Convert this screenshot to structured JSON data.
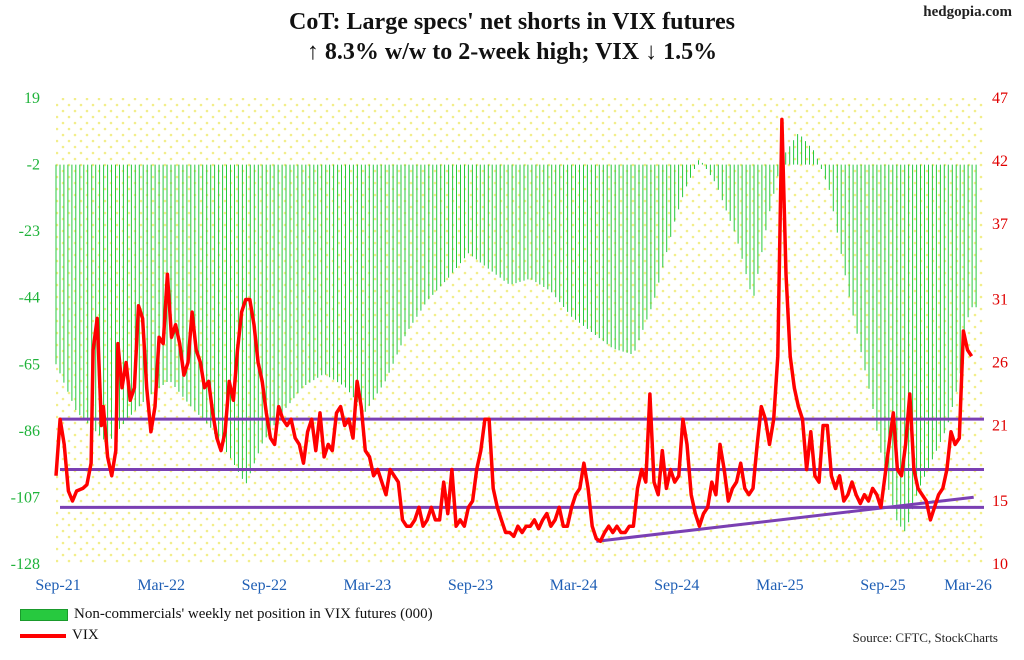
{
  "header": {
    "title_line1": "CoT: Large specs' net shorts in VIX futures",
    "title_line2": "↑ 8.3% w/w to 2-week high; VIX ↓ 1.5%",
    "brand": "hedgopia.com"
  },
  "legend": {
    "bars_label": "Non-commercials' weekly net position in VIX futures (000)",
    "line_label": "VIX"
  },
  "source": "Source: CFTC, StockCharts",
  "colors": {
    "bars": "#27c93f",
    "line": "#ff0000",
    "ref_lines": "#7a3fb3",
    "left_axis": "#1fb33a",
    "right_axis": "#e00000",
    "x_axis": "#1f5fb5",
    "background_dots": "#f2ee8a"
  },
  "chart_data": {
    "type": "bar",
    "x_range": [
      2021.7,
      2026.2
    ],
    "x_ticks": [
      {
        "x": 2021.71,
        "label": "Sep-21"
      },
      {
        "x": 2022.21,
        "label": "Mar-22"
      },
      {
        "x": 2022.71,
        "label": "Sep-22"
      },
      {
        "x": 2023.21,
        "label": "Mar-23"
      },
      {
        "x": 2023.71,
        "label": "Sep-23"
      },
      {
        "x": 2024.21,
        "label": "Mar-24"
      },
      {
        "x": 2024.71,
        "label": "Sep-24"
      },
      {
        "x": 2025.21,
        "label": "Mar-25"
      },
      {
        "x": 2025.71,
        "label": "Sep-25"
      },
      {
        "x": 2026.21,
        "label": "Mar-26"
      }
    ],
    "left_axis": {
      "ticks": [
        19,
        -2,
        -23,
        -44,
        -65,
        -86,
        -107,
        -128
      ],
      "ylim": [
        -128,
        19
      ]
    },
    "right_axis": {
      "ticks": [
        47,
        42,
        37,
        31,
        26,
        21,
        15,
        10
      ],
      "ylim": [
        10,
        47
      ]
    },
    "bars_series": {
      "name": "Non-commercials' weekly net position in VIX futures (000)",
      "anchors": [
        [
          2021.7,
          -65
        ],
        [
          2021.8,
          -80
        ],
        [
          2021.95,
          -90
        ],
        [
          2022.05,
          -82
        ],
        [
          2022.15,
          -75
        ],
        [
          2022.25,
          -70
        ],
        [
          2022.35,
          -78
        ],
        [
          2022.45,
          -85
        ],
        [
          2022.55,
          -95
        ],
        [
          2022.62,
          -103
        ],
        [
          2022.7,
          -90
        ],
        [
          2022.8,
          -80
        ],
        [
          2022.9,
          -72
        ],
        [
          2023.0,
          -68
        ],
        [
          2023.1,
          -72
        ],
        [
          2023.2,
          -80
        ],
        [
          2023.3,
          -70
        ],
        [
          2023.4,
          -55
        ],
        [
          2023.5,
          -45
        ],
        [
          2023.6,
          -38
        ],
        [
          2023.7,
          -30
        ],
        [
          2023.8,
          -35
        ],
        [
          2023.9,
          -40
        ],
        [
          2024.0,
          -38
        ],
        [
          2024.1,
          -42
        ],
        [
          2024.2,
          -50
        ],
        [
          2024.3,
          -55
        ],
        [
          2024.4,
          -60
        ],
        [
          2024.5,
          -62
        ],
        [
          2024.6,
          -45
        ],
        [
          2024.7,
          -20
        ],
        [
          2024.75,
          -10
        ],
        [
          2024.82,
          0
        ],
        [
          2024.9,
          -8
        ],
        [
          2025.0,
          -25
        ],
        [
          2025.08,
          -45
        ],
        [
          2025.15,
          -20
        ],
        [
          2025.22,
          0
        ],
        [
          2025.3,
          8
        ],
        [
          2025.38,
          2
        ],
        [
          2025.45,
          -10
        ],
        [
          2025.55,
          -45
        ],
        [
          2025.65,
          -75
        ],
        [
          2025.72,
          -100
        ],
        [
          2025.78,
          -115
        ],
        [
          2025.82,
          -118
        ],
        [
          2025.88,
          -105
        ],
        [
          2025.95,
          -95
        ],
        [
          2026.02,
          -85
        ],
        [
          2026.08,
          -70
        ],
        [
          2026.13,
          -47
        ],
        [
          2026.17,
          -47
        ]
      ]
    },
    "line_series": {
      "name": "VIX",
      "points": [
        [
          2021.7,
          17.0
        ],
        [
          2021.72,
          21.5
        ],
        [
          2021.74,
          19.5
        ],
        [
          2021.76,
          15.8
        ],
        [
          2021.78,
          15.0
        ],
        [
          2021.8,
          15.8
        ],
        [
          2021.83,
          16.0
        ],
        [
          2021.85,
          16.3
        ],
        [
          2021.87,
          18.0
        ],
        [
          2021.88,
          27.0
        ],
        [
          2021.9,
          29.5
        ],
        [
          2021.92,
          21.0
        ],
        [
          2021.93,
          22.5
        ],
        [
          2021.95,
          18.5
        ],
        [
          2021.97,
          17.0
        ],
        [
          2021.99,
          19.0
        ],
        [
          2022.0,
          27.5
        ],
        [
          2022.02,
          24.0
        ],
        [
          2022.04,
          26.0
        ],
        [
          2022.06,
          23.0
        ],
        [
          2022.08,
          24.0
        ],
        [
          2022.1,
          30.5
        ],
        [
          2022.12,
          29.5
        ],
        [
          2022.14,
          24.0
        ],
        [
          2022.16,
          20.5
        ],
        [
          2022.18,
          22.5
        ],
        [
          2022.2,
          28.0
        ],
        [
          2022.22,
          27.5
        ],
        [
          2022.24,
          33.0
        ],
        [
          2022.26,
          28.0
        ],
        [
          2022.28,
          29.0
        ],
        [
          2022.3,
          27.5
        ],
        [
          2022.32,
          25.0
        ],
        [
          2022.34,
          26.0
        ],
        [
          2022.36,
          30.0
        ],
        [
          2022.38,
          27.0
        ],
        [
          2022.4,
          26.0
        ],
        [
          2022.42,
          24.0
        ],
        [
          2022.44,
          24.5
        ],
        [
          2022.46,
          22.0
        ],
        [
          2022.48,
          20.0
        ],
        [
          2022.5,
          19.0
        ],
        [
          2022.52,
          20.5
        ],
        [
          2022.54,
          24.5
        ],
        [
          2022.56,
          23.0
        ],
        [
          2022.58,
          27.0
        ],
        [
          2022.6,
          30.0
        ],
        [
          2022.62,
          31.0
        ],
        [
          2022.64,
          31.0
        ],
        [
          2022.66,
          29.0
        ],
        [
          2022.68,
          26.0
        ],
        [
          2022.7,
          24.5
        ],
        [
          2022.72,
          22.0
        ],
        [
          2022.74,
          20.0
        ],
        [
          2022.76,
          19.5
        ],
        [
          2022.78,
          22.5
        ],
        [
          2022.8,
          21.5
        ],
        [
          2022.82,
          21.0
        ],
        [
          2022.84,
          21.5
        ],
        [
          2022.86,
          20.0
        ],
        [
          2022.88,
          19.5
        ],
        [
          2022.9,
          18.0
        ],
        [
          2022.92,
          20.5
        ],
        [
          2022.94,
          21.5
        ],
        [
          2022.96,
          19.0
        ],
        [
          2022.98,
          22.0
        ],
        [
          2023.0,
          18.5
        ],
        [
          2023.02,
          19.5
        ],
        [
          2023.04,
          19.0
        ],
        [
          2023.06,
          22.0
        ],
        [
          2023.08,
          22.5
        ],
        [
          2023.1,
          21.0
        ],
        [
          2023.12,
          21.5
        ],
        [
          2023.14,
          20.0
        ],
        [
          2023.16,
          24.5
        ],
        [
          2023.18,
          22.5
        ],
        [
          2023.2,
          19.0
        ],
        [
          2023.22,
          18.5
        ],
        [
          2023.24,
          17.0
        ],
        [
          2023.26,
          17.5
        ],
        [
          2023.28,
          16.5
        ],
        [
          2023.3,
          15.5
        ],
        [
          2023.32,
          17.5
        ],
        [
          2023.34,
          17.0
        ],
        [
          2023.36,
          16.5
        ],
        [
          2023.38,
          13.5
        ],
        [
          2023.4,
          13.0
        ],
        [
          2023.42,
          13.0
        ],
        [
          2023.44,
          13.5
        ],
        [
          2023.46,
          14.5
        ],
        [
          2023.48,
          13.0
        ],
        [
          2023.5,
          13.5
        ],
        [
          2023.52,
          14.5
        ],
        [
          2023.54,
          13.5
        ],
        [
          2023.56,
          13.5
        ],
        [
          2023.58,
          16.5
        ],
        [
          2023.6,
          14.0
        ],
        [
          2023.62,
          17.5
        ],
        [
          2023.64,
          13.0
        ],
        [
          2023.66,
          13.5
        ],
        [
          2023.68,
          13.0
        ],
        [
          2023.7,
          14.5
        ],
        [
          2023.72,
          15.0
        ],
        [
          2023.74,
          17.5
        ],
        [
          2023.76,
          19.0
        ],
        [
          2023.78,
          21.5
        ],
        [
          2023.8,
          21.5
        ],
        [
          2023.82,
          16.0
        ],
        [
          2023.84,
          14.5
        ],
        [
          2023.86,
          13.5
        ],
        [
          2023.88,
          12.5
        ],
        [
          2023.9,
          12.5
        ],
        [
          2023.92,
          12.2
        ],
        [
          2023.94,
          13.0
        ],
        [
          2023.96,
          12.5
        ],
        [
          2023.98,
          13.0
        ],
        [
          2024.0,
          13.0
        ],
        [
          2024.02,
          13.5
        ],
        [
          2024.04,
          12.8
        ],
        [
          2024.06,
          13.5
        ],
        [
          2024.08,
          14.0
        ],
        [
          2024.1,
          13.0
        ],
        [
          2024.12,
          13.5
        ],
        [
          2024.14,
          14.5
        ],
        [
          2024.16,
          13.0
        ],
        [
          2024.18,
          13.0
        ],
        [
          2024.2,
          14.5
        ],
        [
          2024.22,
          15.5
        ],
        [
          2024.24,
          16.0
        ],
        [
          2024.26,
          18.0
        ],
        [
          2024.28,
          16.0
        ],
        [
          2024.3,
          13.0
        ],
        [
          2024.32,
          12.0
        ],
        [
          2024.34,
          11.8
        ],
        [
          2024.36,
          12.5
        ],
        [
          2024.38,
          13.0
        ],
        [
          2024.4,
          12.5
        ],
        [
          2024.42,
          13.0
        ],
        [
          2024.44,
          12.5
        ],
        [
          2024.46,
          12.5
        ],
        [
          2024.48,
          13.0
        ],
        [
          2024.5,
          13.0
        ],
        [
          2024.52,
          16.0
        ],
        [
          2024.54,
          17.5
        ],
        [
          2024.56,
          16.5
        ],
        [
          2024.58,
          23.5
        ],
        [
          2024.6,
          16.5
        ],
        [
          2024.62,
          15.5
        ],
        [
          2024.64,
          19.0
        ],
        [
          2024.66,
          16.0
        ],
        [
          2024.68,
          17.5
        ],
        [
          2024.7,
          16.5
        ],
        [
          2024.72,
          17.0
        ],
        [
          2024.74,
          21.5
        ],
        [
          2024.76,
          19.5
        ],
        [
          2024.78,
          15.5
        ],
        [
          2024.8,
          14.0
        ],
        [
          2024.82,
          13.0
        ],
        [
          2024.84,
          14.0
        ],
        [
          2024.86,
          14.5
        ],
        [
          2024.88,
          16.5
        ],
        [
          2024.9,
          15.5
        ],
        [
          2024.92,
          19.5
        ],
        [
          2024.94,
          17.5
        ],
        [
          2024.96,
          15.0
        ],
        [
          2024.98,
          16.0
        ],
        [
          2025.0,
          16.5
        ],
        [
          2025.02,
          18.0
        ],
        [
          2025.04,
          16.0
        ],
        [
          2025.06,
          15.5
        ],
        [
          2025.08,
          16.0
        ],
        [
          2025.1,
          19.5
        ],
        [
          2025.12,
          22.5
        ],
        [
          2025.14,
          21.5
        ],
        [
          2025.16,
          19.5
        ],
        [
          2025.18,
          21.5
        ],
        [
          2025.2,
          26.5
        ],
        [
          2025.22,
          45.3
        ],
        [
          2025.24,
          33.0
        ],
        [
          2025.26,
          26.5
        ],
        [
          2025.28,
          24.0
        ],
        [
          2025.3,
          22.5
        ],
        [
          2025.32,
          21.5
        ],
        [
          2025.34,
          17.5
        ],
        [
          2025.36,
          20.5
        ],
        [
          2025.38,
          17.0
        ],
        [
          2025.4,
          16.5
        ],
        [
          2025.42,
          21.0
        ],
        [
          2025.44,
          21.0
        ],
        [
          2025.46,
          17.0
        ],
        [
          2025.48,
          16.0
        ],
        [
          2025.5,
          17.0
        ],
        [
          2025.52,
          15.0
        ],
        [
          2025.54,
          15.5
        ],
        [
          2025.56,
          16.5
        ],
        [
          2025.58,
          15.5
        ],
        [
          2025.6,
          14.8
        ],
        [
          2025.62,
          15.5
        ],
        [
          2025.64,
          15.0
        ],
        [
          2025.66,
          16.0
        ],
        [
          2025.68,
          15.5
        ],
        [
          2025.7,
          14.5
        ],
        [
          2025.72,
          17.0
        ],
        [
          2025.74,
          19.5
        ],
        [
          2025.76,
          22.0
        ],
        [
          2025.78,
          17.5
        ],
        [
          2025.8,
          17.0
        ],
        [
          2025.82,
          19.5
        ],
        [
          2025.84,
          23.5
        ],
        [
          2025.86,
          17.5
        ],
        [
          2025.88,
          16.0
        ],
        [
          2025.9,
          15.5
        ],
        [
          2025.92,
          15.0
        ],
        [
          2025.94,
          13.5
        ],
        [
          2025.96,
          14.5
        ],
        [
          2025.98,
          15.5
        ],
        [
          2026.0,
          16.0
        ],
        [
          2026.02,
          17.5
        ],
        [
          2026.04,
          20.5
        ],
        [
          2026.06,
          19.5
        ],
        [
          2026.08,
          20.0
        ],
        [
          2026.1,
          28.5
        ],
        [
          2026.12,
          27.0
        ],
        [
          2026.14,
          26.5
        ]
      ]
    },
    "annotations": [
      {
        "type": "hline",
        "value": 21.5,
        "axis": "right"
      },
      {
        "type": "hline",
        "value": 17.5,
        "axis": "right"
      },
      {
        "type": "hline",
        "value": 14.5,
        "axis": "right"
      },
      {
        "type": "trendline",
        "from": [
          2024.32,
          11.8
        ],
        "to": [
          2026.15,
          15.3
        ],
        "axis": "right"
      }
    ],
    "legend_position": "bottom-left"
  }
}
